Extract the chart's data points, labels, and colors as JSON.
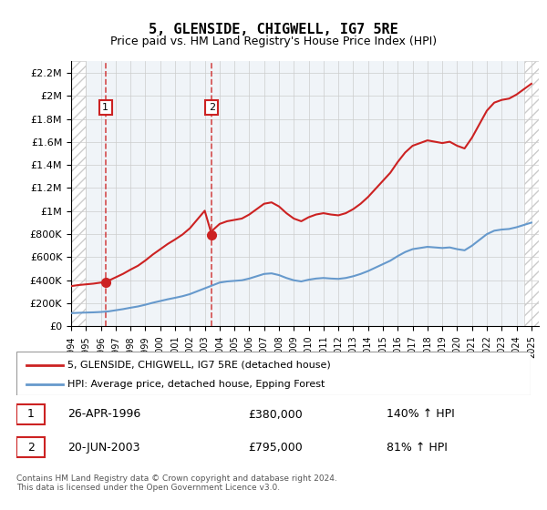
{
  "title": "5, GLENSIDE, CHIGWELL, IG7 5RE",
  "subtitle": "Price paid vs. HM Land Registry's House Price Index (HPI)",
  "xlim": [
    1994.0,
    2025.5
  ],
  "ylim": [
    0,
    2300000
  ],
  "yticks": [
    0,
    200000,
    400000,
    600000,
    800000,
    1000000,
    1200000,
    1400000,
    1600000,
    1800000,
    2000000,
    2200000
  ],
  "ytick_labels": [
    "£0",
    "£200K",
    "£400K",
    "£600K",
    "£800K",
    "£1M",
    "£1.2M",
    "£1.4M",
    "£1.6M",
    "£1.8M",
    "£2M",
    "£2.2M"
  ],
  "xticks": [
    1994,
    1995,
    1996,
    1997,
    1998,
    1999,
    2000,
    2001,
    2002,
    2003,
    2004,
    2005,
    2006,
    2007,
    2008,
    2009,
    2010,
    2011,
    2012,
    2013,
    2014,
    2015,
    2016,
    2017,
    2018,
    2019,
    2020,
    2021,
    2022,
    2023,
    2024,
    2025
  ],
  "hpi_color": "#6699cc",
  "price_color": "#cc2222",
  "sale1_x": 1996.32,
  "sale1_y": 380000,
  "sale2_x": 2003.47,
  "sale2_y": 795000,
  "legend_label1": "5, GLENSIDE, CHIGWELL, IG7 5RE (detached house)",
  "legend_label2": "HPI: Average price, detached house, Epping Forest",
  "annotation1_date": "26-APR-1996",
  "annotation1_price": "£380,000",
  "annotation1_hpi": "140% ↑ HPI",
  "annotation2_date": "20-JUN-2003",
  "annotation2_price": "£795,000",
  "annotation2_hpi": "81% ↑ HPI",
  "footer": "Contains HM Land Registry data © Crown copyright and database right 2024.\nThis data is licensed under the Open Government Licence v3.0.",
  "background_color": "#f0f4f8",
  "hatch_color": "#cccccc",
  "grid_color": "#cccccc"
}
